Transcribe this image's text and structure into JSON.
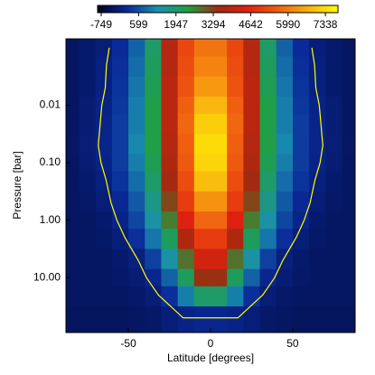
{
  "chart_data": {
    "type": "contour",
    "xlabel": "Latitude [degrees]",
    "ylabel": "Pressure [bar]",
    "xlim": [
      -88,
      88
    ],
    "xticks": [
      -50,
      0,
      50
    ],
    "ylim": [
      0.0007,
      90
    ],
    "y_log": true,
    "y_inverted": true,
    "yticks": [
      {
        "value": 0.01,
        "label": "0.01"
      },
      {
        "value": 0.1,
        "label": "0.10"
      },
      {
        "value": 1,
        "label": "1.00"
      },
      {
        "value": 10,
        "label": "10.00"
      }
    ],
    "zlim": [
      -880,
      7790
    ],
    "zticks": [
      -749,
      599,
      1947,
      3294,
      4642,
      5990,
      7338
    ],
    "colormap": [
      "#000022",
      "#0a2a9a",
      "#1a90b0",
      "#20a040",
      "#a02a10",
      "#e02010",
      "#f06010",
      "#f8b010",
      "#ffff00"
    ],
    "contour_level": 0,
    "contour_color": "#ffff00",
    "x": [
      -85,
      -75,
      -65,
      -55,
      -45,
      -35,
      -25,
      -15,
      -5,
      5,
      15,
      25,
      35,
      45,
      55,
      65,
      75,
      85
    ],
    "y": [
      0.001,
      0.002,
      0.005,
      0.01,
      0.02,
      0.05,
      0.1,
      0.2,
      0.5,
      1,
      2,
      5,
      10,
      20,
      50
    ],
    "z": [
      [
        -300,
        -200,
        -100,
        200,
        800,
        2000,
        3800,
        5200,
        5900,
        5900,
        5200,
        3800,
        2000,
        800,
        200,
        -100,
        -200,
        -300
      ],
      [
        -300,
        -200,
        -50,
        250,
        900,
        2100,
        3800,
        5300,
        6100,
        6100,
        5300,
        3800,
        2100,
        900,
        250,
        -50,
        -200,
        -300
      ],
      [
        -300,
        -200,
        -30,
        300,
        1000,
        2200,
        3900,
        5400,
        6400,
        6400,
        5400,
        3900,
        2200,
        1000,
        300,
        -30,
        -200,
        -300
      ],
      [
        -300,
        -150,
        20,
        350,
        1100,
        2300,
        3900,
        5600,
        6800,
        6800,
        5600,
        3900,
        2300,
        1100,
        350,
        20,
        -150,
        -300
      ],
      [
        -300,
        -150,
        40,
        380,
        1100,
        2300,
        3900,
        5700,
        7100,
        7100,
        5700,
        3900,
        2300,
        1100,
        380,
        40,
        -150,
        -300
      ],
      [
        -280,
        -120,
        60,
        400,
        1200,
        2300,
        3800,
        5600,
        7300,
        7300,
        5600,
        3800,
        2300,
        1200,
        400,
        60,
        -120,
        -280
      ],
      [
        -300,
        -150,
        30,
        380,
        1100,
        2200,
        3700,
        5500,
        7200,
        7200,
        5500,
        3700,
        2200,
        1100,
        380,
        30,
        -150,
        -300
      ],
      [
        -300,
        -200,
        -50,
        300,
        900,
        2000,
        3500,
        5300,
        6900,
        6900,
        5300,
        3500,
        2000,
        900,
        300,
        -50,
        -200,
        -300
      ],
      [
        -300,
        -250,
        -120,
        150,
        700,
        1700,
        3200,
        5000,
        6300,
        6300,
        5000,
        3200,
        1700,
        700,
        150,
        -120,
        -250,
        -300
      ],
      [
        -300,
        -300,
        -200,
        50,
        500,
        1400,
        2700,
        4500,
        5700,
        5700,
        4500,
        2700,
        1400,
        500,
        50,
        -200,
        -300,
        -300
      ],
      [
        -300,
        -300,
        -250,
        -100,
        250,
        1000,
        2100,
        3700,
        5000,
        5000,
        3700,
        2100,
        1000,
        250,
        -100,
        -250,
        -300,
        -300
      ],
      [
        -300,
        -300,
        -300,
        -200,
        -50,
        450,
        1400,
        2800,
        4300,
        4300,
        2800,
        1400,
        450,
        -50,
        -200,
        -300,
        -300,
        -300
      ],
      [
        -300,
        -300,
        -300,
        -250,
        -150,
        100,
        800,
        2100,
        3400,
        3400,
        2100,
        800,
        100,
        -150,
        -250,
        -300,
        -300,
        -300
      ],
      [
        -300,
        -300,
        -300,
        -300,
        -250,
        -120,
        250,
        1100,
        2000,
        2000,
        1100,
        250,
        -120,
        -250,
        -300,
        -300,
        -300,
        -300
      ],
      [
        -350,
        -350,
        -350,
        -350,
        -300,
        -250,
        -100,
        20,
        100,
        100,
        20,
        -100,
        -250,
        -300,
        -350,
        -350,
        -350,
        -350
      ]
    ]
  }
}
